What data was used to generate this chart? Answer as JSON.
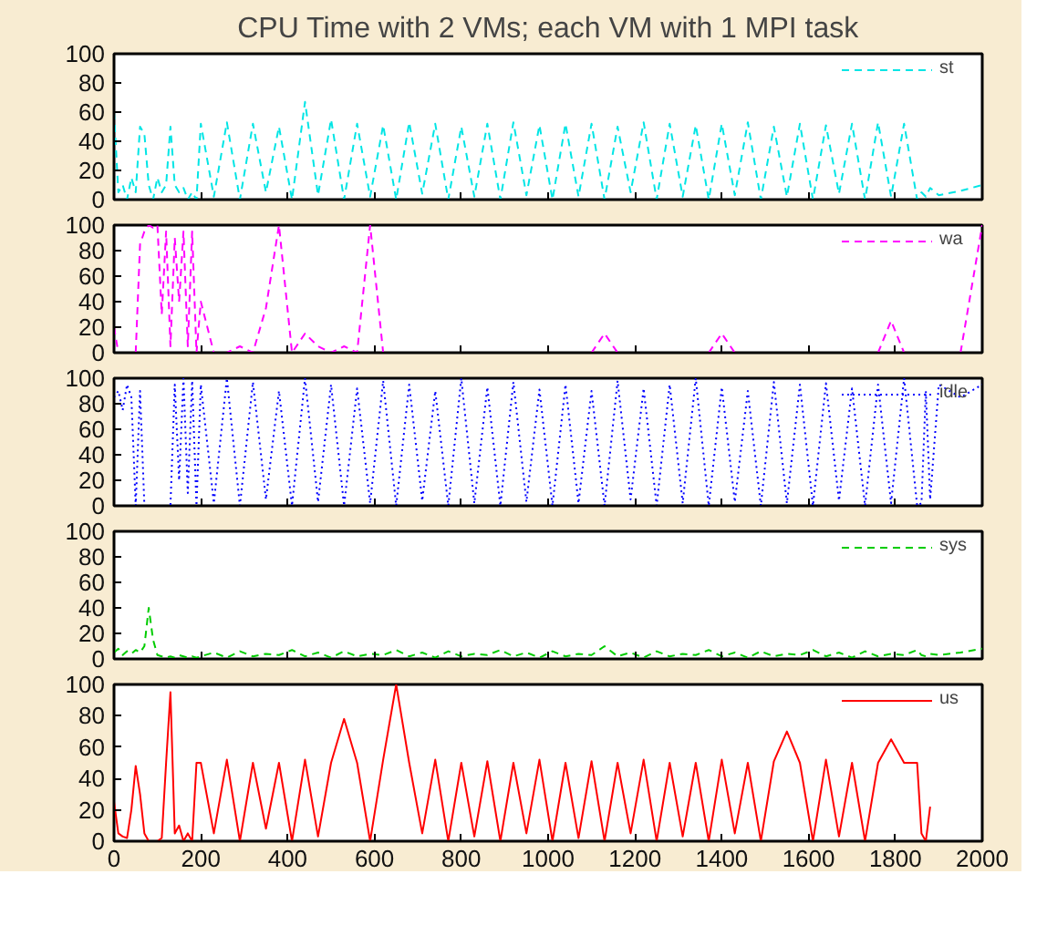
{
  "chart_data": [
    {
      "type": "line",
      "title": "CPU Time with 2 VMs; each VM with 1 MPI task",
      "xlim": [
        0,
        2000
      ],
      "ylim": [
        0,
        100
      ],
      "xticks": [
        0,
        200,
        400,
        600,
        800,
        1000,
        1200,
        1400,
        1600,
        1800,
        2000
      ],
      "yticks": [
        0,
        20,
        40,
        60,
        80,
        100
      ],
      "tick_labels": "y",
      "legend": "top right",
      "line_style": "dashed",
      "x": [
        0,
        10,
        20,
        30,
        40,
        50,
        60,
        70,
        80,
        90,
        100,
        110,
        120,
        130,
        140,
        150,
        160,
        170,
        180,
        190,
        200,
        230,
        260,
        290,
        320,
        350,
        380,
        410,
        440,
        470,
        500,
        530,
        560,
        590,
        620,
        650,
        680,
        710,
        740,
        770,
        800,
        830,
        860,
        890,
        920,
        950,
        980,
        1010,
        1040,
        1070,
        1100,
        1130,
        1160,
        1190,
        1220,
        1250,
        1280,
        1310,
        1340,
        1370,
        1400,
        1430,
        1460,
        1490,
        1520,
        1550,
        1580,
        1610,
        1640,
        1670,
        1700,
        1730,
        1760,
        1790,
        1820,
        1850,
        1860,
        1870,
        1880,
        1900,
        1950,
        2000
      ],
      "series": [
        {
          "name": "st",
          "color": "#00e5e5",
          "values": [
            60,
            5,
            10,
            0,
            15,
            5,
            50,
            45,
            10,
            0,
            15,
            5,
            10,
            50,
            10,
            5,
            8,
            0,
            5,
            0,
            52,
            2,
            53,
            0,
            52,
            5,
            50,
            0,
            67,
            3,
            55,
            0,
            52,
            2,
            51,
            0,
            53,
            4,
            52,
            0,
            50,
            2,
            52,
            0,
            53,
            3,
            51,
            0,
            52,
            2,
            52,
            0,
            50,
            5,
            53,
            0,
            52,
            2,
            51,
            0,
            52,
            3,
            53,
            0,
            50,
            2,
            52,
            0,
            51,
            4,
            52,
            0,
            53,
            2,
            52,
            0,
            5,
            2,
            8,
            3,
            6,
            10
          ]
        }
      ]
    },
    {
      "type": "line",
      "xlim": [
        0,
        2000
      ],
      "ylim": [
        0,
        100
      ],
      "xticks": [
        0,
        200,
        400,
        600,
        800,
        1000,
        1200,
        1400,
        1600,
        1800,
        2000
      ],
      "yticks": [
        0,
        20,
        40,
        60,
        80,
        100
      ],
      "tick_labels": "y",
      "legend": "top right",
      "line_style": "dashed",
      "x": [
        0,
        10,
        20,
        30,
        40,
        50,
        60,
        70,
        80,
        90,
        100,
        110,
        120,
        130,
        140,
        150,
        160,
        170,
        180,
        190,
        200,
        230,
        260,
        290,
        320,
        350,
        380,
        410,
        440,
        470,
        500,
        530,
        560,
        590,
        620,
        650,
        680,
        710,
        740,
        770,
        800,
        830,
        860,
        890,
        920,
        950,
        980,
        1010,
        1040,
        1070,
        1100,
        1130,
        1160,
        1190,
        1220,
        1250,
        1280,
        1310,
        1340,
        1370,
        1400,
        1430,
        1460,
        1490,
        1520,
        1550,
        1580,
        1610,
        1640,
        1670,
        1700,
        1730,
        1760,
        1790,
        1820,
        1850,
        1860,
        1870,
        1880,
        1900,
        1950,
        2000
      ],
      "series": [
        {
          "name": "wa",
          "color": "#ff00ff",
          "values": [
            20,
            0,
            null,
            null,
            null,
            0,
            85,
            95,
            100,
            98,
            100,
            30,
            95,
            5,
            90,
            40,
            95,
            5,
            95,
            0,
            40,
            0,
            0,
            5,
            0,
            35,
            100,
            0,
            15,
            5,
            0,
            5,
            0,
            100,
            0,
            null,
            null,
            null,
            null,
            null,
            null,
            null,
            null,
            null,
            null,
            null,
            null,
            null,
            null,
            null,
            0,
            15,
            0,
            null,
            null,
            null,
            null,
            null,
            null,
            0,
            15,
            0,
            null,
            null,
            null,
            null,
            null,
            null,
            null,
            null,
            null,
            null,
            0,
            25,
            0,
            null,
            null,
            null,
            null,
            null,
            0,
            100
          ]
        }
      ]
    },
    {
      "type": "line",
      "xlim": [
        0,
        2000
      ],
      "ylim": [
        0,
        100
      ],
      "xticks": [
        0,
        200,
        400,
        600,
        800,
        1000,
        1200,
        1400,
        1600,
        1800,
        2000
      ],
      "yticks": [
        0,
        20,
        40,
        60,
        80,
        100
      ],
      "tick_labels": "y",
      "legend": "top right",
      "line_style": "dotted",
      "x": [
        0,
        10,
        20,
        30,
        40,
        50,
        60,
        70,
        80,
        90,
        100,
        110,
        120,
        130,
        140,
        150,
        160,
        170,
        180,
        190,
        200,
        230,
        260,
        290,
        320,
        350,
        380,
        410,
        440,
        470,
        500,
        530,
        560,
        590,
        620,
        650,
        680,
        710,
        740,
        770,
        800,
        830,
        860,
        890,
        920,
        950,
        980,
        1010,
        1040,
        1070,
        1100,
        1130,
        1160,
        1190,
        1220,
        1250,
        1280,
        1310,
        1340,
        1370,
        1400,
        1430,
        1460,
        1490,
        1520,
        1550,
        1580,
        1610,
        1640,
        1670,
        1700,
        1730,
        1760,
        1790,
        1820,
        1850,
        1860,
        1870,
        1880,
        1900,
        1950,
        2000
      ],
      "series": [
        {
          "name": "idle",
          "color": "#0000ff",
          "values": [
            85,
            90,
            75,
            95,
            85,
            0,
            90,
            0,
            0,
            0,
            0,
            0,
            0,
            0,
            95,
            20,
            100,
            10,
            98,
            0,
            95,
            2,
            100,
            0,
            97,
            5,
            90,
            0,
            100,
            3,
            95,
            0,
            92,
            2,
            98,
            0,
            95,
            4,
            90,
            0,
            100,
            2,
            93,
            0,
            97,
            3,
            91,
            0,
            95,
            2,
            90,
            0,
            98,
            5,
            92,
            0,
            95,
            2,
            100,
            0,
            93,
            3,
            90,
            0,
            97,
            2,
            95,
            0,
            96,
            4,
            92,
            0,
            95,
            2,
            100,
            0,
            2,
            90,
            5,
            95,
            85,
            95
          ]
        }
      ]
    },
    {
      "type": "line",
      "xlim": [
        0,
        2000
      ],
      "ylim": [
        0,
        100
      ],
      "xticks": [
        0,
        200,
        400,
        600,
        800,
        1000,
        1200,
        1400,
        1600,
        1800,
        2000
      ],
      "yticks": [
        0,
        20,
        40,
        60,
        80,
        100
      ],
      "tick_labels": "y",
      "legend": "top right",
      "line_style": "dashed",
      "x": [
        0,
        10,
        20,
        30,
        40,
        50,
        60,
        70,
        80,
        90,
        100,
        110,
        120,
        130,
        140,
        150,
        160,
        170,
        180,
        190,
        200,
        230,
        260,
        290,
        320,
        350,
        380,
        410,
        440,
        470,
        500,
        530,
        560,
        590,
        620,
        650,
        680,
        710,
        740,
        770,
        800,
        830,
        860,
        890,
        920,
        950,
        980,
        1010,
        1040,
        1070,
        1100,
        1130,
        1160,
        1190,
        1220,
        1250,
        1280,
        1310,
        1340,
        1370,
        1400,
        1430,
        1460,
        1490,
        1520,
        1550,
        1580,
        1610,
        1640,
        1670,
        1700,
        1730,
        1760,
        1790,
        1820,
        1850,
        1860,
        1870,
        1880,
        1900,
        1950,
        2000
      ],
      "series": [
        {
          "name": "sys",
          "color": "#00cc00",
          "values": [
            5,
            8,
            3,
            6,
            4,
            7,
            5,
            10,
            40,
            15,
            3,
            2,
            1,
            2,
            1,
            3,
            2,
            1,
            2,
            1,
            2,
            5,
            1,
            6,
            2,
            4,
            3,
            7,
            2,
            5,
            1,
            6,
            2,
            4,
            3,
            7,
            2,
            5,
            1,
            6,
            2,
            4,
            3,
            7,
            2,
            5,
            1,
            6,
            2,
            4,
            3,
            10,
            2,
            5,
            1,
            6,
            2,
            4,
            3,
            7,
            2,
            5,
            1,
            6,
            2,
            4,
            3,
            7,
            2,
            5,
            1,
            6,
            2,
            4,
            3,
            7,
            3,
            2,
            4,
            3,
            5,
            8
          ]
        }
      ]
    },
    {
      "type": "line",
      "xlim": [
        0,
        2000
      ],
      "ylim": [
        0,
        100
      ],
      "xticks": [
        0,
        200,
        400,
        600,
        800,
        1000,
        1200,
        1400,
        1600,
        1800,
        2000
      ],
      "yticks": [
        0,
        20,
        40,
        60,
        80,
        100
      ],
      "legend": "top right",
      "line_style": "solid",
      "x": [
        0,
        10,
        20,
        30,
        40,
        50,
        60,
        70,
        80,
        90,
        100,
        110,
        120,
        130,
        140,
        150,
        160,
        170,
        180,
        190,
        200,
        230,
        260,
        290,
        320,
        350,
        380,
        410,
        440,
        470,
        500,
        530,
        560,
        590,
        620,
        650,
        680,
        710,
        740,
        770,
        800,
        830,
        860,
        890,
        920,
        950,
        980,
        1010,
        1040,
        1070,
        1100,
        1130,
        1160,
        1190,
        1220,
        1250,
        1280,
        1310,
        1340,
        1370,
        1400,
        1430,
        1460,
        1490,
        1520,
        1550,
        1580,
        1610,
        1640,
        1670,
        1700,
        1730,
        1760,
        1790,
        1820,
        1850,
        1860,
        1870,
        1880
      ],
      "series": [
        {
          "name": "us",
          "color": "#ff0000",
          "values": [
            25,
            5,
            3,
            2,
            20,
            48,
            30,
            5,
            0,
            0,
            0,
            2,
            50,
            95,
            5,
            10,
            0,
            5,
            0,
            50,
            50,
            5,
            52,
            0,
            50,
            8,
            50,
            0,
            52,
            3,
            50,
            78,
            50,
            0,
            52,
            100,
            50,
            5,
            52,
            0,
            50,
            3,
            51,
            0,
            50,
            5,
            52,
            0,
            50,
            2,
            51,
            0,
            50,
            5,
            52,
            0,
            50,
            3,
            50,
            0,
            52,
            5,
            50,
            0,
            51,
            70,
            50,
            0,
            52,
            3,
            50,
            0,
            50,
            65,
            50,
            50,
            5,
            0,
            22
          ]
        }
      ]
    }
  ]
}
